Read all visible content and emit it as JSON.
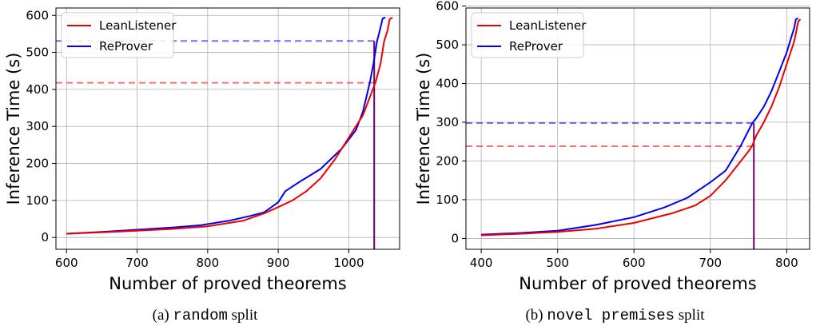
{
  "colors": {
    "leanlistener": "#ee0000",
    "reprover": "#0000ee",
    "grid": "#b0b0b0"
  },
  "chart_data": [
    {
      "type": "line",
      "title": "",
      "xlabel": "Number of proved theorems",
      "ylabel": "Inference Time (s)",
      "xlim": [
        585,
        1072
      ],
      "ylim": [
        -32,
        620
      ],
      "xticks": [
        600,
        700,
        800,
        900,
        1000
      ],
      "yticks": [
        0,
        100,
        200,
        300,
        400,
        500,
        600
      ],
      "grid": true,
      "legend_position": "top-left",
      "series": [
        {
          "name": "LeanListener",
          "color": "#ee0000",
          "points": [
            [
              600,
              10
            ],
            [
              650,
              14
            ],
            [
              700,
              18
            ],
            [
              750,
              23
            ],
            [
              800,
              30
            ],
            [
              850,
              45
            ],
            [
              880,
              65
            ],
            [
              900,
              82
            ],
            [
              920,
              100
            ],
            [
              940,
              125
            ],
            [
              960,
              160
            ],
            [
              980,
              210
            ],
            [
              1000,
              270
            ],
            [
              1020,
              330
            ],
            [
              1030,
              380
            ],
            [
              1038,
              420
            ],
            [
              1045,
              470
            ],
            [
              1050,
              530
            ],
            [
              1055,
              560
            ],
            [
              1058,
              590
            ],
            [
              1062,
              594
            ]
          ]
        },
        {
          "name": "ReProver",
          "color": "#0000ee",
          "points": [
            [
              600,
              10
            ],
            [
              650,
              15
            ],
            [
              700,
              21
            ],
            [
              750,
              27
            ],
            [
              790,
              33
            ],
            [
              830,
              45
            ],
            [
              860,
              58
            ],
            [
              880,
              68
            ],
            [
              900,
              95
            ],
            [
              910,
              125
            ],
            [
              930,
              150
            ],
            [
              960,
              185
            ],
            [
              990,
              240
            ],
            [
              1010,
              290
            ],
            [
              1020,
              340
            ],
            [
              1030,
              420
            ],
            [
              1035,
              470
            ],
            [
              1040,
              530
            ],
            [
              1044,
              560
            ],
            [
              1048,
              592
            ],
            [
              1052,
              594
            ]
          ]
        }
      ],
      "reference_lines": {
        "leanlistener_y": 418,
        "reprover_y": 531,
        "common_x": 1036
      },
      "caption_label": "(a)",
      "caption_mono": "random",
      "caption_suffix": "split"
    },
    {
      "type": "line",
      "title": "",
      "xlabel": "Number of proved theorems",
      "ylabel": "Inference Time (s)",
      "xlim": [
        380,
        830
      ],
      "ylim": [
        -28,
        595
      ],
      "xticks": [
        400,
        500,
        600,
        700,
        800
      ],
      "yticks": [
        0,
        100,
        200,
        300,
        400,
        500,
        600
      ],
      "grid": true,
      "legend_position": "top-left",
      "series": [
        {
          "name": "LeanListener",
          "color": "#ee0000",
          "points": [
            [
              400,
              8
            ],
            [
              450,
              12
            ],
            [
              500,
              17
            ],
            [
              550,
              25
            ],
            [
              600,
              40
            ],
            [
              650,
              65
            ],
            [
              680,
              85
            ],
            [
              700,
              110
            ],
            [
              720,
              150
            ],
            [
              740,
              200
            ],
            [
              750,
              225
            ],
            [
              755,
              240
            ],
            [
              760,
              265
            ],
            [
              770,
              300
            ],
            [
              780,
              340
            ],
            [
              790,
              390
            ],
            [
              800,
              450
            ],
            [
              810,
              510
            ],
            [
              815,
              560
            ],
            [
              818,
              566
            ]
          ]
        },
        {
          "name": "ReProver",
          "color": "#0000ee",
          "points": [
            [
              400,
              10
            ],
            [
              450,
              14
            ],
            [
              500,
              20
            ],
            [
              550,
              35
            ],
            [
              600,
              55
            ],
            [
              640,
              80
            ],
            [
              670,
              105
            ],
            [
              700,
              145
            ],
            [
              720,
              175
            ],
            [
              740,
              240
            ],
            [
              755,
              298
            ],
            [
              760,
              310
            ],
            [
              770,
              340
            ],
            [
              780,
              380
            ],
            [
              790,
              430
            ],
            [
              800,
              480
            ],
            [
              810,
              545
            ],
            [
              812,
              566
            ],
            [
              815,
              568
            ]
          ]
        }
      ],
      "reference_lines": {
        "leanlistener_y": 238,
        "reprover_y": 298,
        "common_x": 757
      },
      "caption_label": "(b)",
      "caption_mono": "novel premises",
      "caption_suffix": "split"
    }
  ]
}
